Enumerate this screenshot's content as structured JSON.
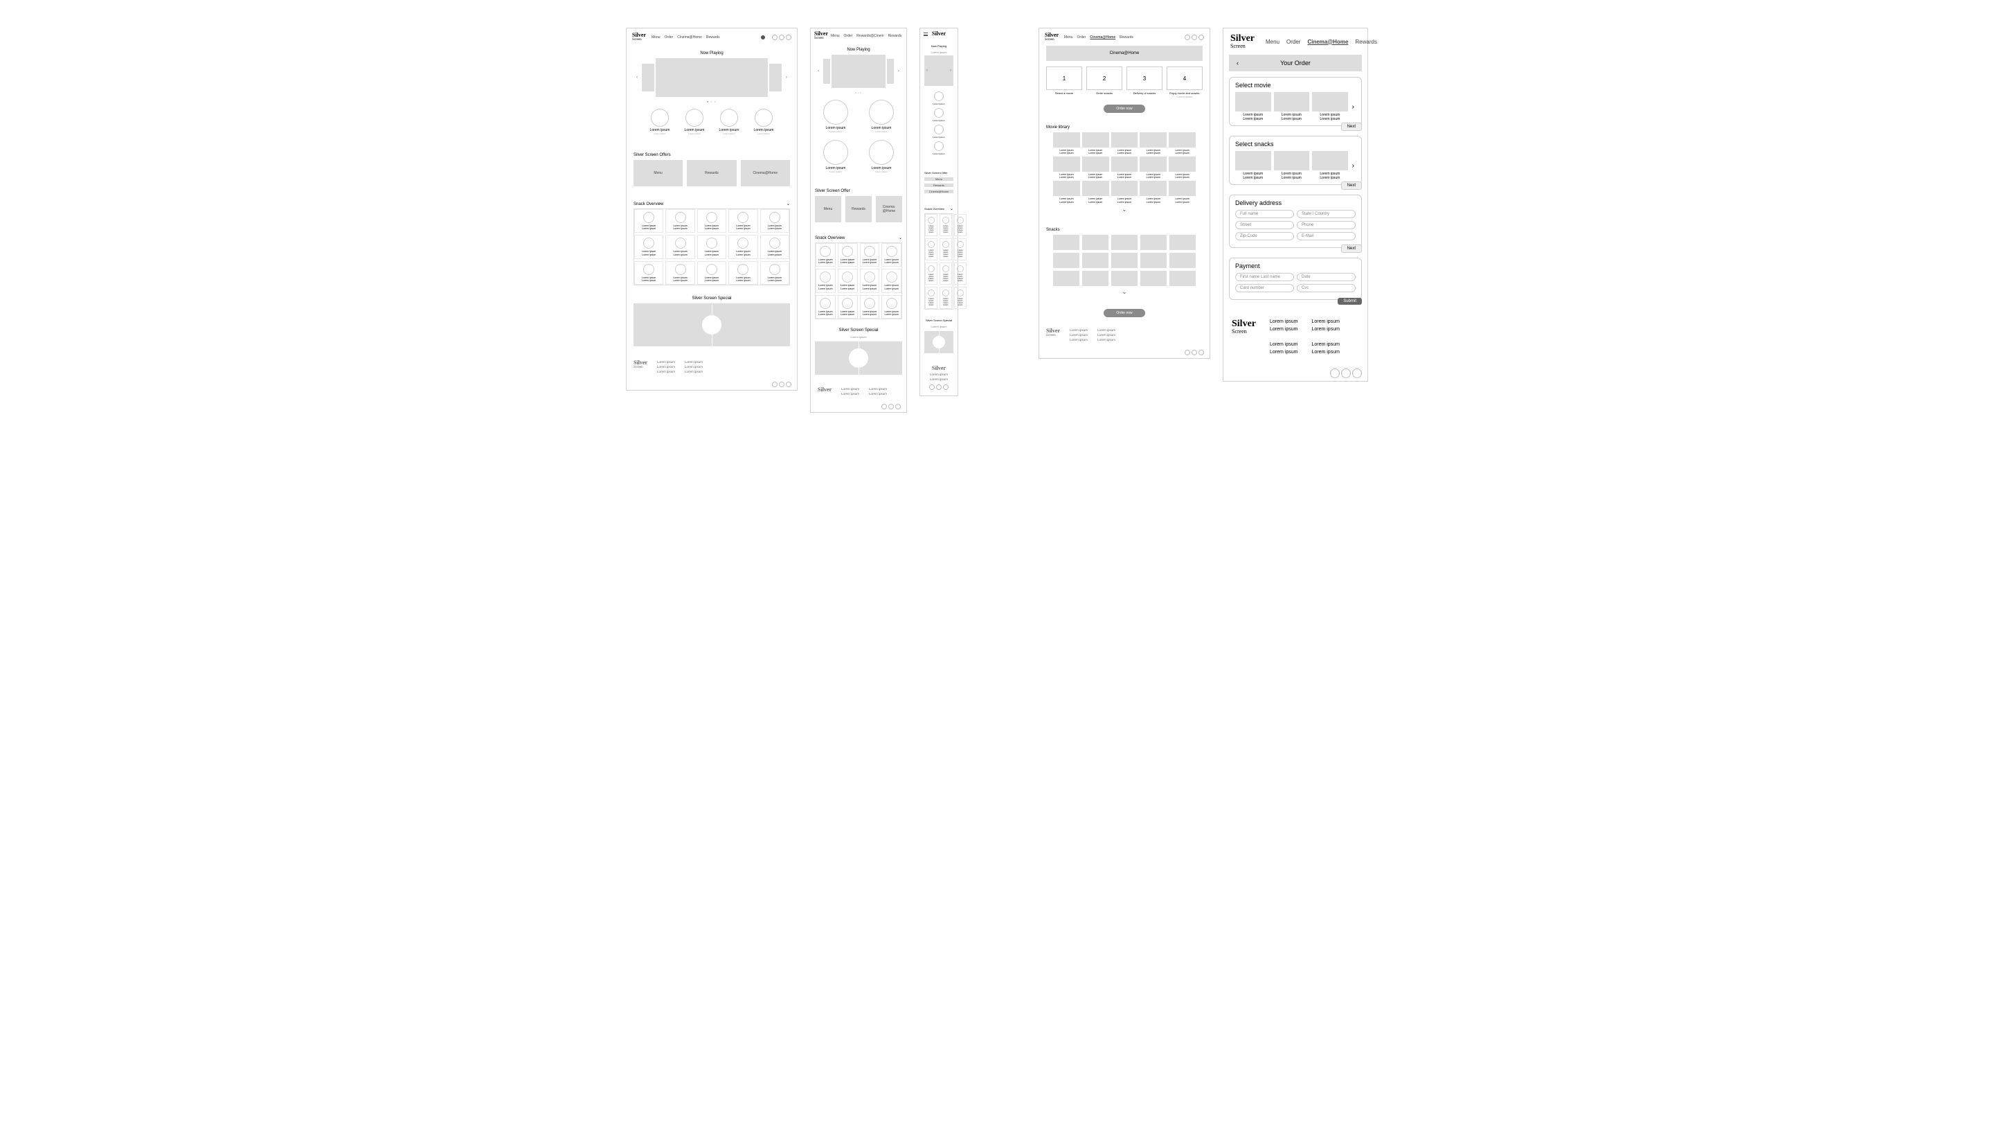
{
  "brand": {
    "line1": "Silver",
    "line2": "Screen"
  },
  "nav": {
    "menu": "Menu",
    "order": "Order",
    "cinema": "Cinema@Home",
    "rewards": "Rewards"
  },
  "home": {
    "now_playing": "Now Playing",
    "dots": "● ○ ○",
    "feature": {
      "title": "Lorem ipsum",
      "sub": "Lorem ipsum"
    },
    "offers_title": "Silver Screen Offers",
    "offers_title_singular": "Silver Screen Offer",
    "offers": {
      "menu": "Menu",
      "rewards": "Rewards",
      "cinema": "Cinema@Home"
    },
    "snack_title": "Snack Overview",
    "snack_cell": "Lorem ipsum\nLorem ipsum",
    "special_title": "Silver Screen Special",
    "special_sub": "Lorem ipsum"
  },
  "cinemaHome": {
    "bar": "Cinema@Home",
    "steps": [
      {
        "num": "1",
        "lbl": "Select a movie"
      },
      {
        "num": "2",
        "lbl": "Order snacks"
      },
      {
        "num": "3",
        "lbl": "Delivery of snacks"
      },
      {
        "num": "4",
        "lbl": "Enjoy movie and snacks"
      }
    ],
    "step_sub": "Lorem ipsum",
    "order_now": "Order now",
    "library_title": "Movie library",
    "snacks_title": "Snacks",
    "cell": "Lorem ipsum\nLorem ipsum"
  },
  "order": {
    "title": "Your Order",
    "select_movie": "Select movie",
    "select_snacks": "Select snacks",
    "item": "Lorem ipsum\nLorem ipsum",
    "next": "Next",
    "delivery_title": "Delivery address",
    "fields": {
      "name": "Full name",
      "state": "State / Country",
      "street": "Street",
      "phone": "Phone",
      "zip": "Zip-Code",
      "email": "E-Mail"
    },
    "payment_title": "Payment",
    "pay": {
      "name": "First name Last name",
      "date": "Date",
      "card": "Card number",
      "cvc": "Cvc"
    },
    "submit": "Submit"
  },
  "footer": {
    "link": "Lorem ipsum"
  },
  "glyph": {
    "left": "‹",
    "right": "›",
    "down": "⌄",
    "back": "‹"
  }
}
